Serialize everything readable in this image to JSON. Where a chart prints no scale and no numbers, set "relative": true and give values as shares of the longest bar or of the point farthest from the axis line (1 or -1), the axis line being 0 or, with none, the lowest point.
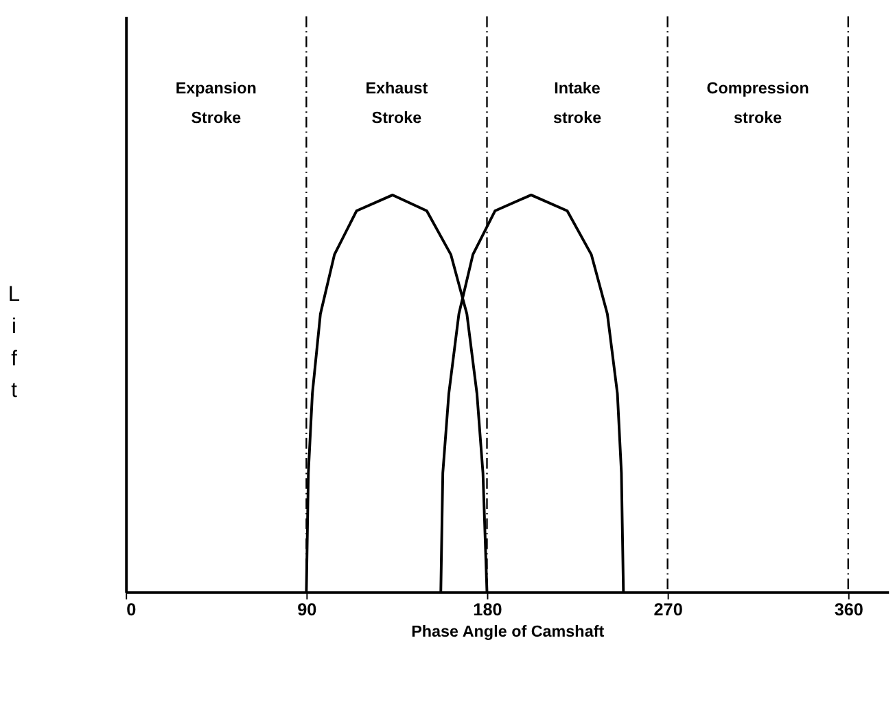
{
  "chart_data": {
    "type": "line",
    "relative": true,
    "xlabel": "Phase Angle of Camshaft",
    "ylabel": "Lift",
    "xlim": [
      0,
      380
    ],
    "xticks": [
      0,
      90,
      180,
      270,
      360
    ],
    "grid": false,
    "legend": false,
    "marker": "none",
    "line_style": "solid",
    "series": [
      {
        "color": "#000000",
        "x": [
          90,
          91,
          93,
          97,
          104,
          115,
          133,
          150,
          162,
          170,
          175,
          178,
          180
        ],
        "values": [
          0,
          0.3,
          0.5,
          0.7,
          0.85,
          0.96,
          1.0,
          0.96,
          0.85,
          0.7,
          0.5,
          0.3,
          0
        ]
      },
      {
        "color": "#000000",
        "x": [
          157,
          158,
          161,
          166,
          173,
          184,
          202,
          220,
          232,
          240,
          245,
          247,
          248
        ],
        "values": [
          0,
          0.3,
          0.5,
          0.7,
          0.85,
          0.96,
          1.0,
          0.96,
          0.85,
          0.7,
          0.5,
          0.3,
          0
        ]
      }
    ],
    "ref_lines": [
      {
        "axis": "x",
        "value": 90,
        "color": "#000000",
        "line_style": "dashed"
      },
      {
        "axis": "x",
        "value": 180,
        "color": "#000000",
        "line_style": "dashed"
      },
      {
        "axis": "x",
        "value": 270,
        "color": "#000000",
        "line_style": "dashed"
      },
      {
        "axis": "x",
        "value": 360,
        "color": "#000000",
        "line_style": "dashed"
      }
    ],
    "annotations": [
      "Expansion\nStroke",
      "Exhaust\nStroke",
      "Intake\nstroke",
      "Compression\nstroke"
    ]
  }
}
